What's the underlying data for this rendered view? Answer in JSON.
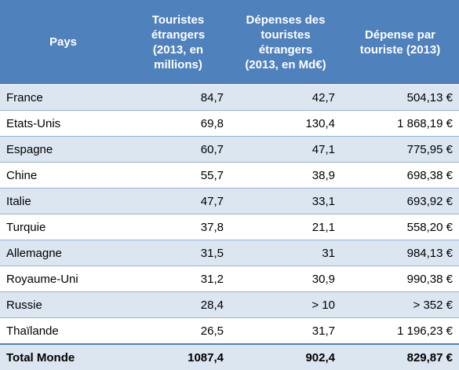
{
  "headers": {
    "country": "Pays",
    "tourists": [
      "Touristes",
      "étrangers",
      "(2013, en",
      "millions)"
    ],
    "spending": [
      "Dépenses des",
      "touristes",
      "étrangers",
      "(2013, en Md€)"
    ],
    "per_tourist": [
      "Dépense par",
      "touriste (2013)"
    ]
  },
  "rows": [
    {
      "country": "France",
      "tourists": "84,7",
      "spending": "42,7",
      "per_tourist": "504,13 €"
    },
    {
      "country": "Etats-Unis",
      "tourists": "69,8",
      "spending": "130,4",
      "per_tourist": "1 868,19 €"
    },
    {
      "country": "Espagne",
      "tourists": "60,7",
      "spending": "47,1",
      "per_tourist": "775,95 €"
    },
    {
      "country": "Chine",
      "tourists": "55,7",
      "spending": "38,9",
      "per_tourist": "698,38 €"
    },
    {
      "country": "Italie",
      "tourists": "47,7",
      "spending": "33,1",
      "per_tourist": "693,92 €"
    },
    {
      "country": "Turquie",
      "tourists": "37,8",
      "spending": "21,1",
      "per_tourist": "558,20 €"
    },
    {
      "country": "Allemagne",
      "tourists": "31,5",
      "spending": "31",
      "per_tourist": "984,13 €"
    },
    {
      "country": "Royaume-Uni",
      "tourists": "31,2",
      "spending": "30,9",
      "per_tourist": "990,38 €"
    },
    {
      "country": "Russie",
      "tourists": "28,4",
      "spending": "> 10",
      "per_tourist": "> 352 €"
    },
    {
      "country": "Thaïlande",
      "tourists": "26,5",
      "spending": "31,7",
      "per_tourist": "1 196,23 €"
    }
  ],
  "total": {
    "country": "Total Monde",
    "tourists": "1087,4",
    "spending": "902,4",
    "per_tourist": "829,87 €"
  },
  "colors": {
    "header_bg": "#4f81bd",
    "band": "#dce6f1",
    "border": "#95b3d7"
  }
}
